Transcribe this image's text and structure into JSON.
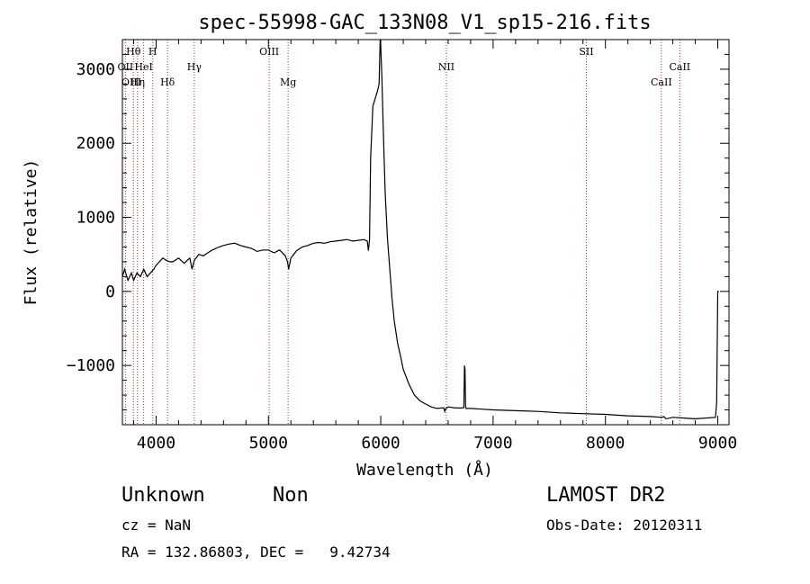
{
  "chart_data": {
    "type": "line",
    "title": "spec-55998-GAC_133N08_V1_sp15-216.fits",
    "xlabel": "Wavelength (Å)",
    "ylabel": "Flux (relative)",
    "xlim": [
      3700,
      9100
    ],
    "ylim": [
      -1800,
      3400
    ],
    "x_ticks": [
      4000,
      5000,
      6000,
      7000,
      8000,
      9000
    ],
    "y_ticks": [
      -1000,
      0,
      1000,
      2000,
      3000
    ],
    "grid": false,
    "series": [
      {
        "color": "#000000",
        "x": [
          3700,
          3720,
          3750,
          3780,
          3800,
          3830,
          3860,
          3890,
          3920,
          3950,
          3980,
          4000,
          4030,
          4060,
          4090,
          4120,
          4150,
          4200,
          4250,
          4300,
          4320,
          4340,
          4380,
          4420,
          4460,
          4500,
          4560,
          4600,
          4650,
          4700,
          4750,
          4800,
          4850,
          4900,
          4950,
          5000,
          5050,
          5100,
          5150,
          5170,
          5180,
          5200,
          5250,
          5300,
          5350,
          5400,
          5450,
          5500,
          5550,
          5600,
          5650,
          5700,
          5750,
          5800,
          5850,
          5880,
          5890,
          5900,
          5910,
          5930,
          5950,
          5970,
          5985,
          5995,
          6000,
          6010,
          6020,
          6030,
          6040,
          6060,
          6080,
          6100,
          6120,
          6150,
          6180,
          6200,
          6250,
          6300,
          6350,
          6400,
          6450,
          6500,
          6560,
          6570,
          6580,
          6600,
          6650,
          6700,
          6740,
          6745,
          6750,
          6755,
          6760,
          6800,
          6900,
          7000,
          7200,
          7400,
          7600,
          7800,
          8000,
          8200,
          8400,
          8500,
          8520,
          8540,
          8600,
          8800,
          8980,
          8990,
          9000,
          9010
        ],
        "y": [
          200,
          300,
          150,
          250,
          150,
          250,
          200,
          300,
          200,
          250,
          300,
          350,
          400,
          450,
          420,
          400,
          400,
          450,
          380,
          450,
          300,
          420,
          500,
          480,
          520,
          560,
          600,
          620,
          640,
          650,
          620,
          600,
          580,
          540,
          560,
          560,
          520,
          560,
          480,
          400,
          300,
          450,
          550,
          600,
          620,
          650,
          660,
          650,
          670,
          680,
          690,
          700,
          680,
          690,
          700,
          680,
          550,
          700,
          1800,
          2500,
          2600,
          2700,
          2800,
          3400,
          3300,
          2900,
          2300,
          1800,
          1300,
          700,
          300,
          -100,
          -400,
          -700,
          -900,
          -1050,
          -1250,
          -1400,
          -1480,
          -1520,
          -1560,
          -1580,
          -1570,
          -1620,
          -1580,
          -1560,
          -1570,
          -1575,
          -1570,
          -1000,
          -1050,
          -1560,
          -1580,
          -1580,
          -1590,
          -1600,
          -1610,
          -1620,
          -1640,
          -1650,
          -1660,
          -1680,
          -1690,
          -1700,
          -1690,
          -1720,
          -1700,
          -1720,
          -1700,
          -1500,
          0,
          0
        ]
      }
    ],
    "annotations": [
      {
        "label": "Hθ",
        "x": 3798,
        "row": 1
      },
      {
        "label": "H",
        "x": 3970,
        "row": 1
      },
      {
        "label": "Hγ",
        "x": 4340,
        "row": 2
      },
      {
        "label": "OIII",
        "x": 5007,
        "row": 1
      },
      {
        "label": "NII",
        "x": 6584,
        "row": 2
      },
      {
        "label": "SII",
        "x": 7830,
        "row": 1
      },
      {
        "label": "CaII",
        "x": 8662,
        "row": 2
      },
      {
        "label": "OII",
        "x": 3727,
        "row": 2
      },
      {
        "label": "HeI",
        "x": 3889,
        "row": 2
      },
      {
        "label": "OIII",
        "x": 3780,
        "row": 3
      },
      {
        "label": "Hη",
        "x": 3835,
        "row": 3
      },
      {
        "label": "Hδ",
        "x": 4102,
        "row": 3
      },
      {
        "label": "Mg",
        "x": 5175,
        "row": 3
      },
      {
        "label": "CaII",
        "x": 8498,
        "row": 3
      }
    ],
    "line_positions": [
      3727,
      3798,
      3835,
      3889,
      3970,
      4102,
      4340,
      5007,
      5175,
      6584,
      7830,
      8498,
      8662
    ]
  },
  "info": {
    "object_class": "Unknown",
    "subclass": "Non",
    "survey": "LAMOST DR2",
    "cz": "cz = NaN",
    "obs_date": "Obs-Date: 20120311",
    "coords": "RA = 132.86803, DEC =   9.42734"
  }
}
